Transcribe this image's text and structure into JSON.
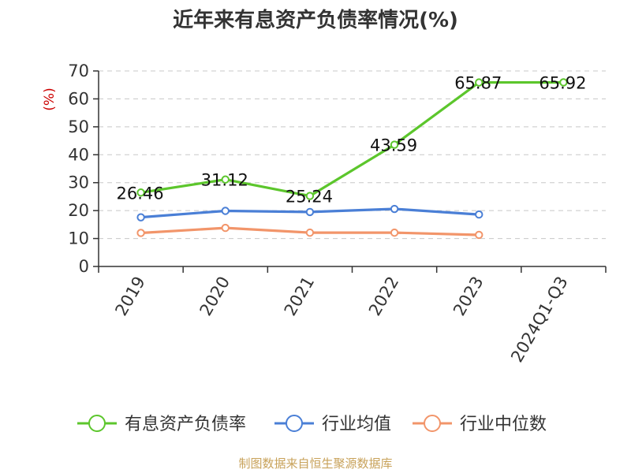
{
  "chart_data": {
    "type": "line",
    "title": "近年来有息资产负债率情况(%)",
    "ylabel": "(%)",
    "xlabel": "",
    "ylim": [
      0,
      70
    ],
    "yticks": [
      0,
      10,
      20,
      30,
      40,
      50,
      60,
      70
    ],
    "categories": [
      "2019",
      "2020",
      "2021",
      "2022",
      "2023",
      "2024Q1-Q3"
    ],
    "grid": true,
    "legend_position": "bottom",
    "series": [
      {
        "name": "有息资产负债率",
        "color": "#5cc62c",
        "values": [
          26.46,
          31.12,
          25.24,
          43.59,
          65.87,
          65.92
        ],
        "labels": [
          "26.46",
          "31.12",
          "25.24",
          "43.59",
          "65.87",
          "65.92"
        ],
        "show_labels": true
      },
      {
        "name": "行业均值",
        "color": "#4a7fd6",
        "values": [
          17.6,
          19.9,
          19.5,
          20.6,
          18.6,
          null
        ],
        "show_labels": false
      },
      {
        "name": "行业中位数",
        "color": "#f2956a",
        "values": [
          12.0,
          13.8,
          12.1,
          12.1,
          11.3,
          null
        ],
        "show_labels": false
      }
    ]
  },
  "source": "制图数据来自恒生聚源数据库"
}
